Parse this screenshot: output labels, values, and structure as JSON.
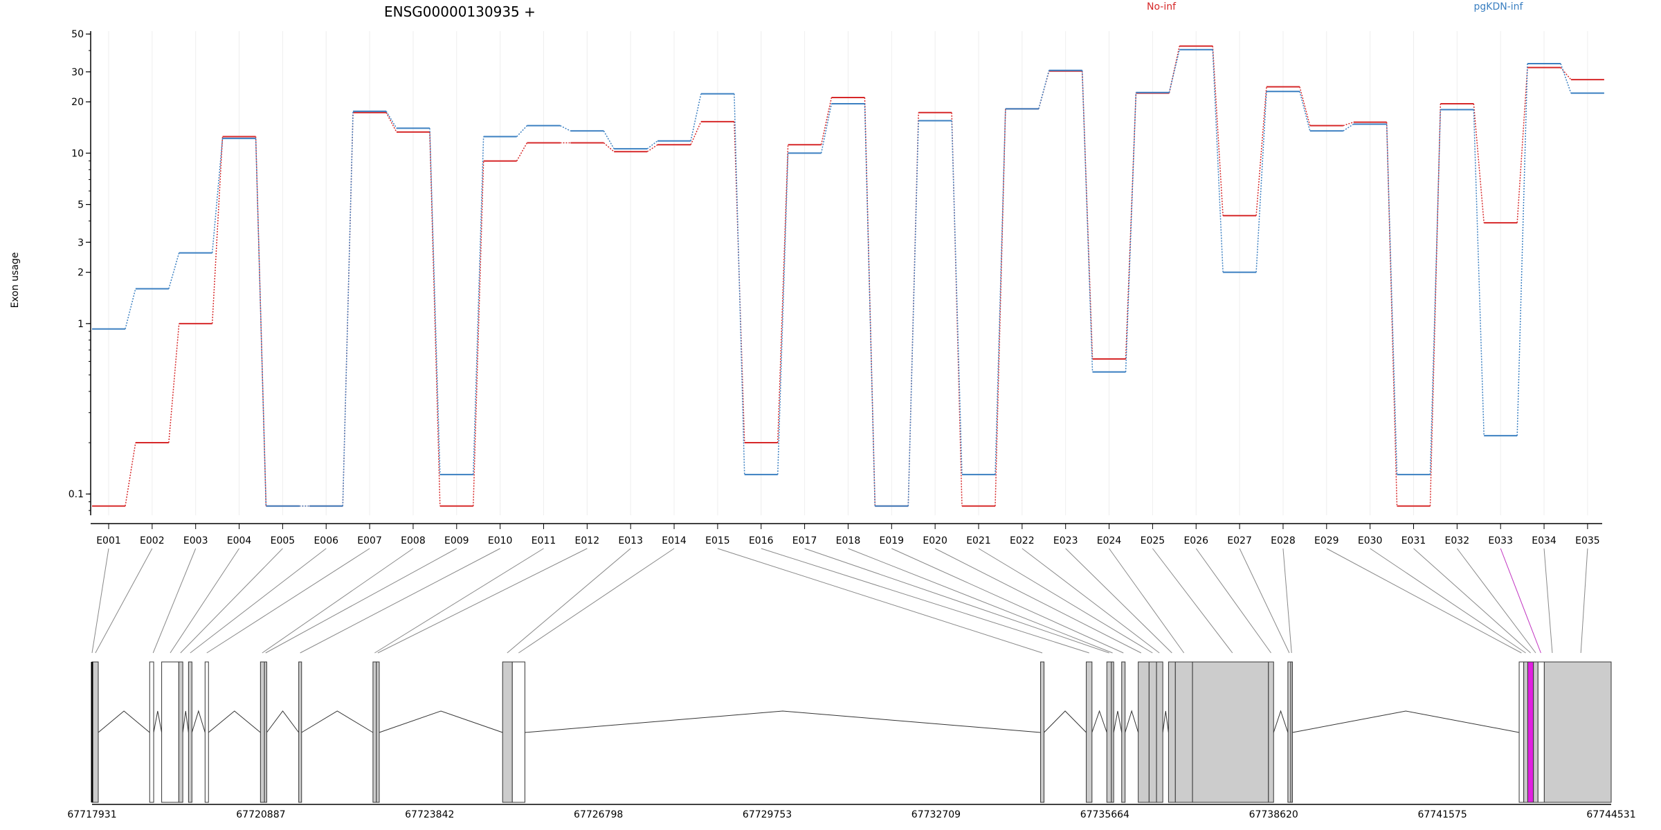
{
  "chart_data": {
    "type": "line",
    "title": "ENSG00000130935 +",
    "ylabel": "Exon usage",
    "xlabel": "",
    "y_scale": "log",
    "ylim": [
      0.075,
      52
    ],
    "y_ticks": [
      0.1,
      1,
      2,
      3,
      5,
      10,
      20,
      30,
      50
    ],
    "y_tick_labels": [
      "0.1",
      "1",
      "2",
      "3",
      "5",
      "10",
      "20",
      "30",
      "50"
    ],
    "grid": "vertical-light",
    "legend": "top",
    "colors": {
      "No-inf": "#d62728",
      "pgKDN-inf": "#3a7fc1",
      "highlight": "#e020e0",
      "exon_fill": "#cccccc"
    },
    "categories": [
      "E001",
      "E002",
      "E003",
      "E004",
      "E005",
      "E006",
      "E007",
      "E008",
      "E009",
      "E010",
      "E011",
      "E012",
      "E013",
      "E014",
      "E015",
      "E016",
      "E017",
      "E018",
      "E019",
      "E020",
      "E021",
      "E022",
      "E023",
      "E024",
      "E025",
      "E026",
      "E027",
      "E028",
      "E029",
      "E030",
      "E031",
      "E032",
      "E033",
      "E034",
      "E035"
    ],
    "series": [
      {
        "name": "No-inf",
        "color": "#d62728",
        "values": [
          0.085,
          0.2,
          1.0,
          12.5,
          0.085,
          0.085,
          17.3,
          13.3,
          0.085,
          9.0,
          11.5,
          11.5,
          10.2,
          11.2,
          15.3,
          0.2,
          11.2,
          21.2,
          0.085,
          17.3,
          0.085,
          18.2,
          30.3,
          0.62,
          22.5,
          42.5,
          4.3,
          24.5,
          14.5,
          15.2,
          0.085,
          19.5,
          3.9,
          31.8,
          27.0
        ]
      },
      {
        "name": "pgKDN-inf",
        "color": "#3a7fc1",
        "values": [
          0.93,
          1.6,
          2.6,
          12.2,
          0.085,
          0.085,
          17.6,
          14.0,
          0.13,
          12.5,
          14.5,
          13.5,
          10.6,
          11.8,
          22.3,
          0.13,
          10.0,
          19.5,
          0.085,
          15.5,
          0.13,
          18.2,
          30.6,
          0.52,
          22.7,
          40.5,
          2.0,
          23.0,
          13.5,
          14.8,
          0.13,
          18.0,
          0.22,
          33.5,
          22.5
        ]
      }
    ],
    "gene_axis": {
      "tick_labels": [
        "67717931",
        "67720887",
        "67723842",
        "67726798",
        "67729753",
        "67732709",
        "67735664",
        "67738620",
        "67741575",
        "67744531"
      ],
      "range": [
        67717931,
        67744531
      ],
      "highlight_exon": "E033"
    }
  }
}
